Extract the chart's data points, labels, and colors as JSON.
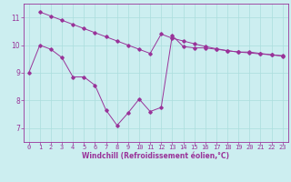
{
  "xlabel": "Windchill (Refroidissement éolien,°C)",
  "bg_color": "#cceef0",
  "line_color": "#993399",
  "grid_color": "#aadddd",
  "line1_x": [
    0,
    1,
    2,
    3,
    4,
    5,
    6,
    7,
    8,
    9,
    10,
    11,
    12,
    13,
    14,
    15,
    16,
    17,
    18,
    19,
    20,
    21,
    22,
    23
  ],
  "line1_y": [
    9.0,
    10.0,
    9.85,
    9.55,
    8.85,
    8.85,
    8.55,
    7.65,
    7.1,
    7.55,
    8.05,
    7.6,
    7.75,
    10.35,
    9.95,
    9.9,
    9.9,
    9.85,
    9.8,
    9.75,
    9.75,
    9.7,
    9.65,
    9.6
  ],
  "line2_x": [
    1,
    2,
    3,
    4,
    5,
    6,
    7,
    8,
    9,
    10,
    11,
    12,
    13,
    14,
    15,
    16,
    17,
    18,
    19,
    20,
    21,
    22,
    23
  ],
  "line2_y": [
    11.2,
    11.05,
    10.9,
    10.75,
    10.6,
    10.45,
    10.3,
    10.15,
    10.0,
    9.85,
    9.7,
    10.4,
    10.25,
    10.15,
    10.05,
    9.95,
    9.87,
    9.8,
    9.75,
    9.72,
    9.68,
    9.65,
    9.62
  ],
  "ylim": [
    6.5,
    11.5
  ],
  "xlim": [
    -0.5,
    23.5
  ],
  "yticks": [
    7,
    8,
    9,
    10,
    11
  ],
  "xticks": [
    0,
    1,
    2,
    3,
    4,
    5,
    6,
    7,
    8,
    9,
    10,
    11,
    12,
    13,
    14,
    15,
    16,
    17,
    18,
    19,
    20,
    21,
    22,
    23
  ],
  "tick_fontsize": 5.0,
  "xlabel_fontsize": 5.5,
  "marker_size": 1.8,
  "line_width": 0.7
}
